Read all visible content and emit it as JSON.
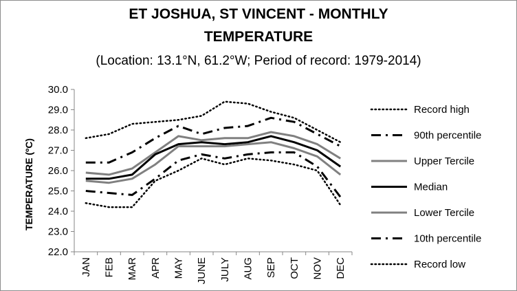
{
  "chart_data": {
    "type": "line",
    "title_line1": "ET JOSHUA, ST VINCENT - MONTHLY",
    "title_line2": "TEMPERATURE",
    "subtitle": "(Location: 13.1°N, 61.2°W; Period of record: 1979-2014)",
    "xlabel": "",
    "ylabel": "TEMPERATURE (ºC)",
    "ylim": [
      22.0,
      30.0
    ],
    "ytick_step": 1.0,
    "ytick_labels": [
      "22.0",
      "23.0",
      "24.0",
      "25.0",
      "26.0",
      "27.0",
      "28.0",
      "29.0",
      "30.0"
    ],
    "grid": false,
    "legend_position": "right",
    "categories": [
      "JAN",
      "FEB",
      "MAR",
      "APR",
      "MAY",
      "JUNE",
      "JULY",
      "AUG",
      "SEP",
      "OCT",
      "NOV",
      "DEC"
    ],
    "series": [
      {
        "name": "Record high",
        "color": "#000000",
        "style": "dotted",
        "values": [
          27.6,
          27.8,
          28.3,
          28.4,
          28.5,
          28.7,
          29.4,
          29.3,
          28.9,
          28.6,
          28.0,
          27.4
        ]
      },
      {
        "name": "90th percentile",
        "color": "#000000",
        "style": "dashdot",
        "values": [
          26.4,
          26.4,
          26.9,
          27.6,
          28.2,
          27.8,
          28.1,
          28.2,
          28.6,
          28.4,
          27.8,
          27.2
        ]
      },
      {
        "name": "Upper Tercile",
        "color": "#808080",
        "style": "solid",
        "values": [
          25.9,
          25.8,
          26.1,
          26.9,
          27.7,
          27.5,
          27.6,
          27.6,
          27.9,
          27.7,
          27.3,
          26.6
        ]
      },
      {
        "name": "Median",
        "color": "#000000",
        "style": "solid",
        "values": [
          25.6,
          25.6,
          25.8,
          26.8,
          27.3,
          27.4,
          27.3,
          27.4,
          27.7,
          27.4,
          27.0,
          26.2
        ]
      },
      {
        "name": "Lower Tercile",
        "color": "#808080",
        "style": "solid",
        "values": [
          25.5,
          25.4,
          25.6,
          26.3,
          27.2,
          27.2,
          27.2,
          27.3,
          27.4,
          27.1,
          26.7,
          25.8
        ]
      },
      {
        "name": "10th percentile",
        "color": "#000000",
        "style": "dashdot",
        "values": [
          25.0,
          24.9,
          24.8,
          25.6,
          26.5,
          26.8,
          26.6,
          26.8,
          26.9,
          26.9,
          26.2,
          24.7
        ]
      },
      {
        "name": "Record low",
        "color": "#000000",
        "style": "dotted",
        "values": [
          24.4,
          24.2,
          24.2,
          25.5,
          26.0,
          26.6,
          26.3,
          26.6,
          26.5,
          26.3,
          26.0,
          24.3
        ]
      }
    ]
  }
}
